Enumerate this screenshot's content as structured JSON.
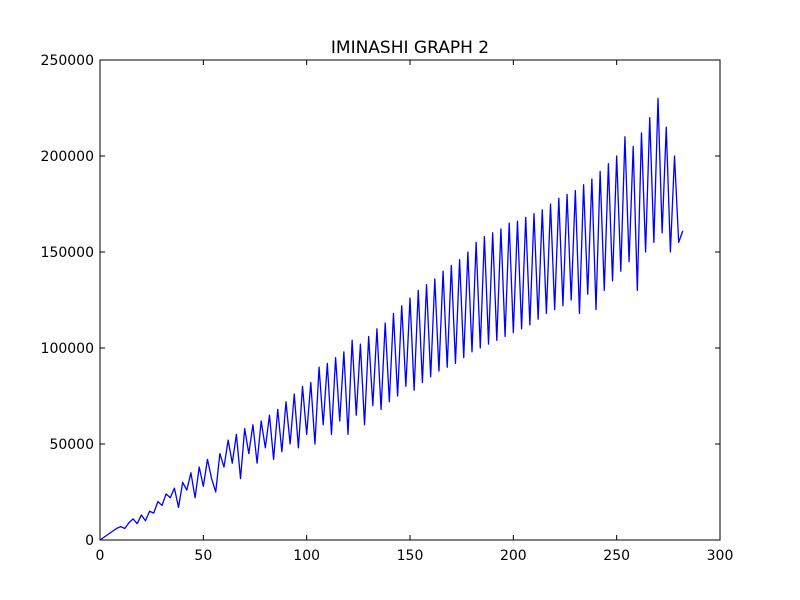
{
  "chart_data": {
    "type": "line",
    "title": "IMINASHI GRAPH 2",
    "xlabel": "",
    "ylabel": "",
    "xlim": [
      0,
      300
    ],
    "ylim": [
      0,
      250000
    ],
    "x_ticks": [
      0,
      50,
      100,
      150,
      200,
      250,
      300
    ],
    "y_ticks": [
      0,
      50000,
      100000,
      150000,
      200000,
      250000
    ],
    "grid": false,
    "line_color": "#0000ff",
    "series": [
      {
        "x": [
          0,
          2,
          4,
          6,
          8,
          10,
          12,
          14,
          16,
          18,
          20,
          22,
          24,
          26,
          28,
          30,
          32,
          34,
          36,
          38,
          40,
          42,
          44,
          46,
          48,
          50,
          52,
          54,
          56,
          58,
          60,
          62,
          64,
          66,
          68,
          70,
          72,
          74,
          76,
          78,
          80,
          82,
          84,
          86,
          88,
          90,
          92,
          94,
          96,
          98,
          100,
          102,
          104,
          106,
          108,
          110,
          112,
          114,
          116,
          118,
          120,
          122,
          124,
          126,
          128,
          130,
          132,
          134,
          136,
          138,
          140,
          142,
          144,
          146,
          148,
          150,
          152,
          154,
          156,
          158,
          160,
          162,
          164,
          166,
          168,
          170,
          172,
          174,
          176,
          178,
          180,
          182,
          184,
          186,
          188,
          190,
          192,
          194,
          196,
          198,
          200,
          202,
          204,
          206,
          208,
          210,
          212,
          214,
          216,
          218,
          220,
          222,
          224,
          226,
          228,
          230,
          232,
          234,
          236,
          238,
          240,
          242,
          244,
          246,
          248,
          250,
          252,
          254,
          256,
          258,
          260,
          262,
          264,
          266,
          268,
          270,
          272,
          274,
          276,
          278,
          280,
          282
        ],
        "y": [
          0,
          1500,
          3000,
          4500,
          6000,
          7000,
          6000,
          9000,
          11000,
          8500,
          13000,
          10000,
          15000,
          14000,
          20000,
          18000,
          24000,
          22000,
          27000,
          17000,
          30000,
          26000,
          35000,
          22000,
          38000,
          28000,
          42000,
          32000,
          25000,
          45000,
          38000,
          52000,
          40000,
          55000,
          32000,
          58000,
          45000,
          60000,
          40000,
          62000,
          48000,
          65000,
          42000,
          68000,
          46000,
          72000,
          50000,
          76000,
          48000,
          80000,
          55000,
          82000,
          50000,
          90000,
          60000,
          92000,
          55000,
          95000,
          62000,
          98000,
          55000,
          104000,
          65000,
          102000,
          60000,
          106000,
          70000,
          110000,
          68000,
          113000,
          72000,
          118000,
          75000,
          122000,
          80000,
          126000,
          78000,
          130000,
          82000,
          133000,
          85000,
          136000,
          88000,
          140000,
          90000,
          143000,
          92000,
          146000,
          95000,
          150000,
          98000,
          155000,
          100000,
          158000,
          102000,
          160000,
          104000,
          162000,
          106000,
          165000,
          108000,
          166000,
          110000,
          168000,
          112000,
          170000,
          115000,
          172000,
          118000,
          175000,
          120000,
          178000,
          122000,
          180000,
          125000,
          182000,
          118000,
          185000,
          128000,
          188000,
          120000,
          192000,
          130000,
          196000,
          135000,
          200000,
          140000,
          210000,
          145000,
          205000,
          130000,
          212000,
          150000,
          220000,
          155000,
          230000,
          160000,
          215000,
          150000,
          200000,
          155000,
          161000
        ]
      }
    ]
  }
}
